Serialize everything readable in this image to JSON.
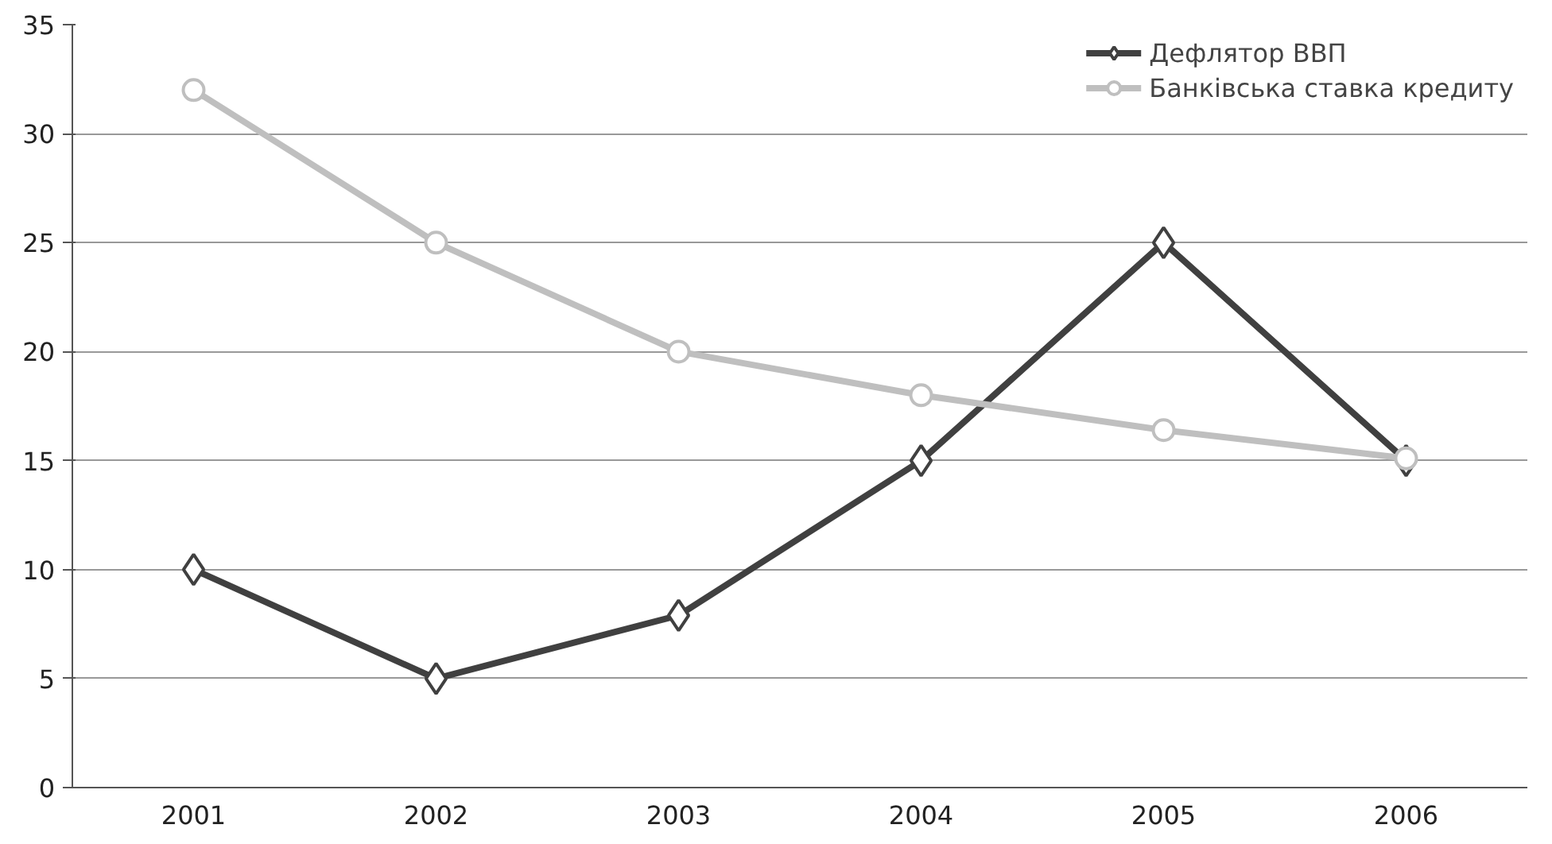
{
  "chart_data": {
    "type": "line",
    "categories": [
      "2001",
      "2002",
      "2003",
      "2004",
      "2005",
      "2006"
    ],
    "series": [
      {
        "name": "Дефлятор ВВП",
        "color": "#404040",
        "values": [
          10,
          5,
          7.9,
          15,
          25,
          15
        ],
        "marker": "diamond"
      },
      {
        "name": "Банківська ставка кредиту",
        "color": "#bfbfbf",
        "values": [
          32,
          25,
          20,
          18,
          16.4,
          15.1
        ],
        "marker": "circle"
      }
    ],
    "ylim": [
      0,
      35
    ],
    "yticks": [
      0,
      5,
      10,
      15,
      20,
      25,
      30,
      35
    ],
    "grid": "y",
    "legend": "top right",
    "line_style": "solid"
  }
}
